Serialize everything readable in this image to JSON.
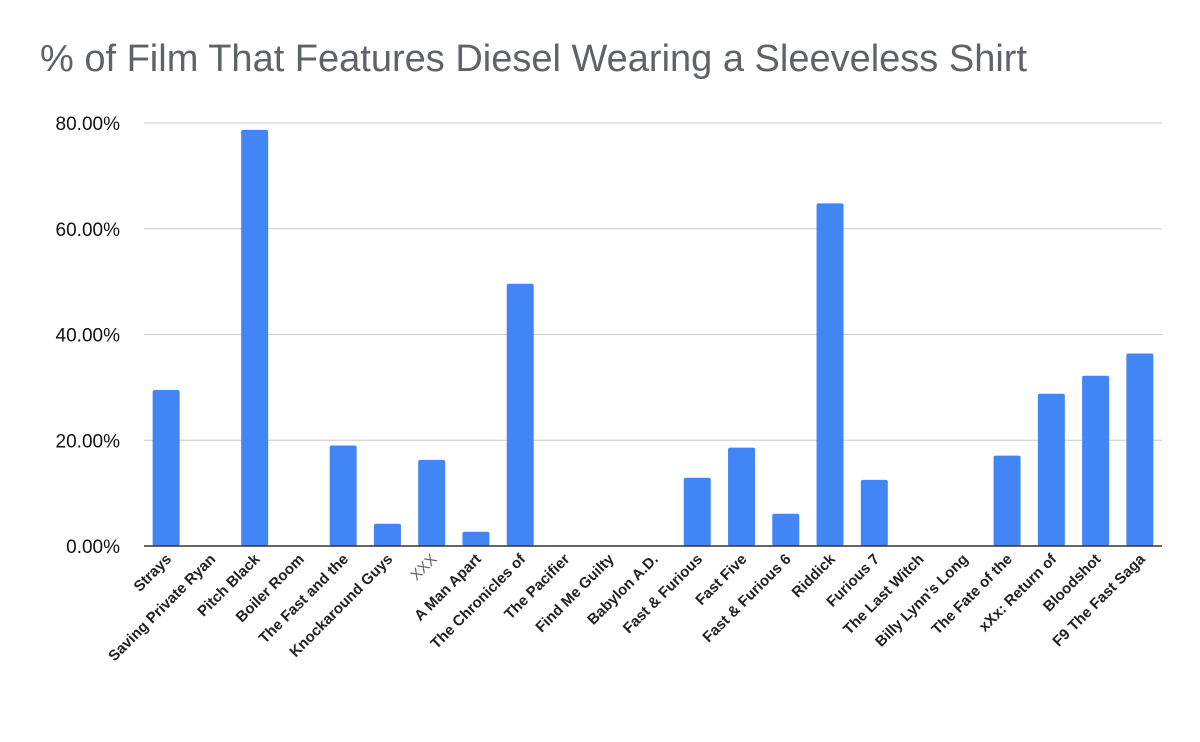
{
  "chart_data": {
    "type": "bar",
    "title": "% of Film That Features Diesel Wearing a Sleeveless Shirt",
    "xlabel": "",
    "ylabel": "",
    "ylim": [
      0,
      80
    ],
    "yticks": [
      {
        "value": 0,
        "label": "0.00%"
      },
      {
        "value": 20,
        "label": "20.00%"
      },
      {
        "value": 40,
        "label": "40.00%"
      },
      {
        "value": 60,
        "label": "60.00%"
      },
      {
        "value": 80,
        "label": "80.00%"
      }
    ],
    "grid": true,
    "bar_color": "#4285f4",
    "categories": [
      "Strays",
      "Saving Private Ryan",
      "Pitch Black",
      "Boiler Room",
      "The Fast and the",
      "Knockaround Guys",
      "XXX",
      "A Man Apart",
      "The Chronicles of",
      "The Pacifier",
      "Find Me Guilty",
      "Babylon A.D.",
      "Fast & Furious",
      "Fast Five",
      "Fast & Furious 6",
      "Riddick",
      "Furious 7",
      "The Last Witch",
      "Billy Lynn's Long",
      "The Fate of the",
      "xXx: Return of",
      "Bloodshot",
      "F9 The Fast Saga"
    ],
    "values": [
      29.5,
      0,
      78.7,
      0,
      19,
      4.2,
      16.3,
      2.7,
      49.6,
      0,
      0,
      0,
      12.9,
      18.6,
      6.1,
      64.8,
      12.5,
      0,
      0,
      17.1,
      28.8,
      32.2,
      36.4
    ]
  }
}
